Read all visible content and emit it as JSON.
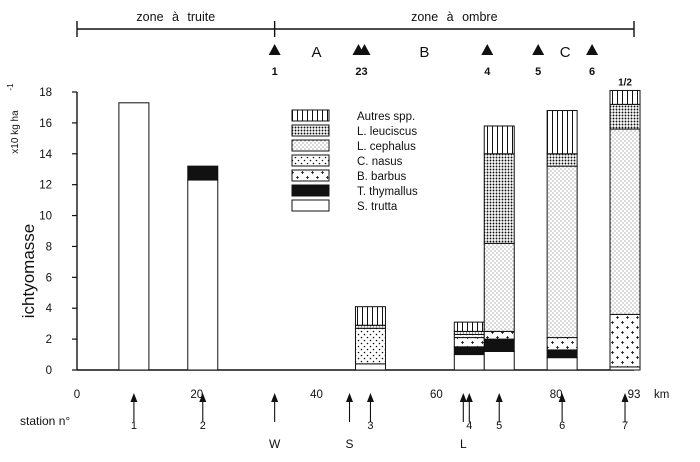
{
  "chart_data": {
    "type": "stacked-bar",
    "ylabel": "ichtyomasse",
    "yunit": "x10 kg ha",
    "yunit_exp": "-1",
    "xunit": "km",
    "xlim": [
      0,
      93
    ],
    "ylim": [
      0,
      18
    ],
    "x_ticks": [
      0,
      20,
      40,
      60,
      80,
      93
    ],
    "y_ticks": [
      0,
      2,
      4,
      6,
      8,
      10,
      12,
      14,
      16,
      18
    ],
    "zones": [
      {
        "label": "zone à truite",
        "from": 0,
        "to": 33
      },
      {
        "label": "zone à ombre",
        "from": 33,
        "to": 93
      }
    ],
    "reaches": [
      {
        "label": "A",
        "x": 40
      },
      {
        "label": "B",
        "x": 58
      },
      {
        "label": "C",
        "x": 81.5
      }
    ],
    "markers": [
      {
        "label": "1",
        "x": 33
      },
      {
        "label": "23",
        "x": 47.5
      },
      {
        "label": "4",
        "x": 68.5
      },
      {
        "label": "5",
        "x": 77
      },
      {
        "label": "6",
        "x": 86
      }
    ],
    "station_label": "station n°",
    "stations": [
      {
        "label": "1",
        "x": 9.5
      },
      {
        "label": "2",
        "x": 21
      },
      {
        "label": "W",
        "x": 33
      },
      {
        "label": "S",
        "x": 45.5
      },
      {
        "label": "3",
        "x": 49
      },
      {
        "label": "L",
        "x": 64.5
      },
      {
        "label": "4",
        "x": 65.5
      },
      {
        "label": "5",
        "x": 70.5
      },
      {
        "label": "6",
        "x": 81
      },
      {
        "label": "7",
        "x": 91.5
      }
    ],
    "bar_note": "1/2",
    "species": [
      "S. trutta",
      "T. thymallus",
      "B. barbus",
      "C. nasus",
      "L. cephalus",
      "L. leuciscus",
      "Autres spp."
    ],
    "legend_order": [
      "Autres spp.",
      "L. leuciscus",
      "L. cephalus",
      "C. nasus",
      "B. barbus",
      "T. thymallus",
      "S. trutta"
    ],
    "bars": [
      {
        "station": "1",
        "x": 9.5,
        "values": [
          17.3,
          0,
          0,
          0,
          0,
          0,
          0
        ]
      },
      {
        "station": "2",
        "x": 21,
        "values": [
          12.3,
          0.9,
          0,
          0,
          0,
          0,
          0
        ]
      },
      {
        "station": "3",
        "x": 49,
        "values": [
          0.4,
          0,
          0,
          2.3,
          0,
          0.2,
          1.2
        ]
      },
      {
        "station": "4",
        "x": 65.5,
        "values": [
          1.0,
          0.5,
          0.6,
          0.2,
          0,
          0.2,
          0.6
        ]
      },
      {
        "station": "5",
        "x": 70.5,
        "values": [
          1.2,
          0.8,
          0.5,
          0,
          5.7,
          5.8,
          1.8
        ]
      },
      {
        "station": "6",
        "x": 81,
        "values": [
          0.8,
          0.5,
          0.8,
          0,
          11.1,
          0.8,
          2.8
        ]
      },
      {
        "station": "7",
        "x": 91.5,
        "values": [
          0.2,
          0,
          3.4,
          0,
          12.0,
          1.6,
          0.9
        ]
      }
    ]
  }
}
